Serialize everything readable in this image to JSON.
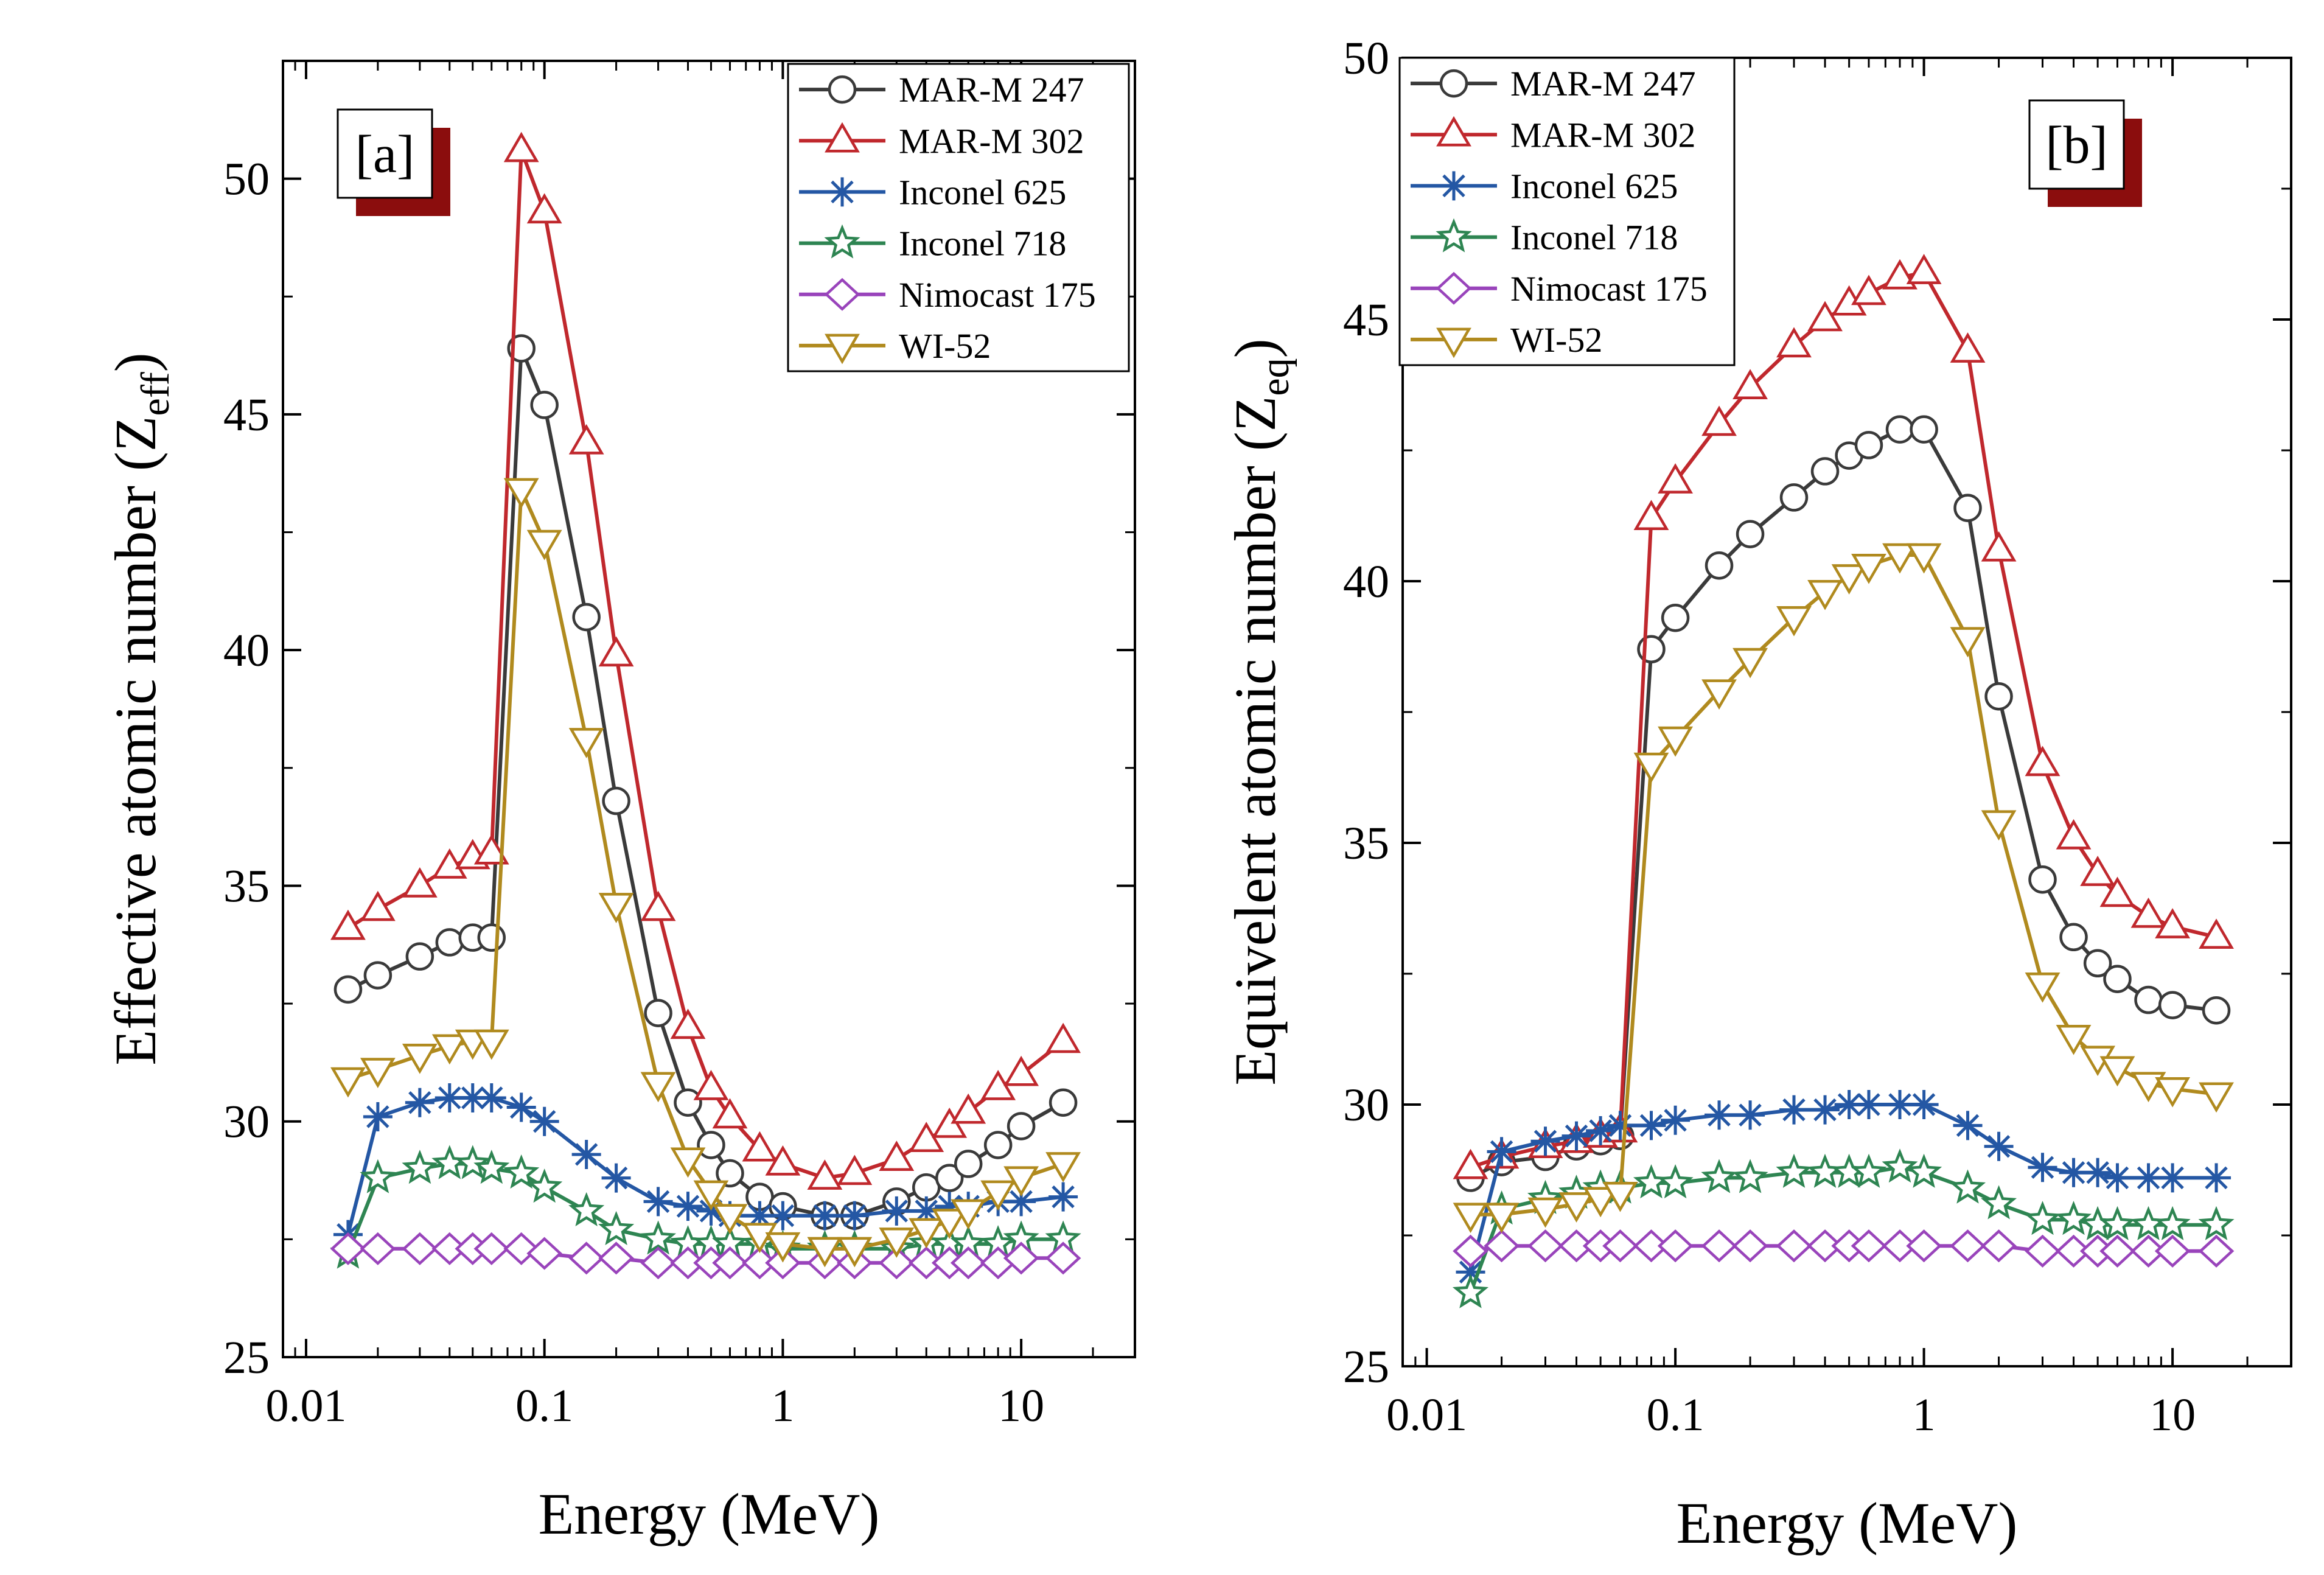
{
  "chart_data": [
    {
      "type": "line",
      "panel_tag": "[a]",
      "xlabel": "Energy (MeV)",
      "ylabel": "Effective atomic number (Z",
      "ylabel_sub": "eff",
      "ylabel_close": ")",
      "xscale": "log",
      "xlim": [
        0.008,
        30
      ],
      "ylim": [
        25,
        52.5
      ],
      "xticks": [
        0.01,
        0.1,
        1,
        10
      ],
      "xtick_labels": [
        "0.01",
        "0.1",
        "1",
        "10"
      ],
      "yticks": [
        25,
        30,
        35,
        40,
        45,
        50
      ],
      "ytick_labels": [
        "25",
        "30",
        "35",
        "40",
        "45",
        "50"
      ],
      "legend_position": "top-right",
      "x": [
        0.015,
        0.02,
        0.03,
        0.04,
        0.05,
        0.06,
        0.08,
        0.1,
        0.15,
        0.2,
        0.3,
        0.4,
        0.5,
        0.6,
        0.8,
        1,
        1.5,
        2,
        3,
        4,
        5,
        6,
        8,
        10,
        15
      ],
      "series": [
        {
          "name": "MAR-M 247",
          "color": "#3a3a3a",
          "marker": "circle",
          "values": [
            32.8,
            33.1,
            33.5,
            33.8,
            33.9,
            33.9,
            46.4,
            45.2,
            40.7,
            36.8,
            32.3,
            30.4,
            29.5,
            28.9,
            28.4,
            28.2,
            28.0,
            28.0,
            28.3,
            28.6,
            28.8,
            29.1,
            29.5,
            29.9,
            30.4
          ]
        },
        {
          "name": "MAR-M 302",
          "color": "#c0282d",
          "marker": "triangle-up",
          "values": [
            34.1,
            34.5,
            35.0,
            35.4,
            35.6,
            35.7,
            50.6,
            49.3,
            44.4,
            39.9,
            34.5,
            32.0,
            30.7,
            30.1,
            29.4,
            29.1,
            28.8,
            28.9,
            29.2,
            29.6,
            29.9,
            30.2,
            30.7,
            31.0,
            31.7
          ]
        },
        {
          "name": "Inconel 625",
          "color": "#2457a4",
          "marker": "asterisk",
          "values": [
            27.6,
            30.1,
            30.4,
            30.5,
            30.5,
            30.5,
            30.3,
            30.0,
            29.3,
            28.8,
            28.3,
            28.2,
            28.1,
            28.0,
            28.0,
            28.0,
            28.0,
            28.0,
            28.1,
            28.1,
            28.2,
            28.2,
            28.3,
            28.3,
            28.4
          ]
        },
        {
          "name": "Inconel 718",
          "color": "#2e8552",
          "marker": "star",
          "values": [
            27.2,
            28.8,
            29.0,
            29.1,
            29.1,
            29.0,
            28.9,
            28.6,
            28.1,
            27.7,
            27.5,
            27.4,
            27.4,
            27.4,
            27.4,
            27.3,
            27.3,
            27.3,
            27.3,
            27.4,
            27.4,
            27.4,
            27.4,
            27.5,
            27.5
          ]
        },
        {
          "name": "Nimocast 175",
          "color": "#9944bb",
          "marker": "diamond",
          "values": [
            27.3,
            27.3,
            27.3,
            27.3,
            27.3,
            27.3,
            27.3,
            27.2,
            27.1,
            27.1,
            27.0,
            27.0,
            27.0,
            27.0,
            27.0,
            27.0,
            27.0,
            27.0,
            27.0,
            27.0,
            27.0,
            27.0,
            27.0,
            27.1,
            27.1
          ]
        },
        {
          "name": "WI-52",
          "color": "#b08a1e",
          "marker": "triangle-down",
          "values": [
            30.9,
            31.1,
            31.4,
            31.6,
            31.7,
            31.7,
            43.4,
            42.3,
            38.1,
            34.6,
            30.8,
            29.2,
            28.5,
            28.0,
            27.6,
            27.4,
            27.3,
            27.3,
            27.5,
            27.7,
            27.9,
            28.1,
            28.5,
            28.8,
            29.1
          ]
        }
      ]
    },
    {
      "type": "line",
      "panel_tag": "[b]",
      "xlabel": "Energy (MeV)",
      "ylabel": "Equivelent atomic number (Z",
      "ylabel_sub": "eq",
      "ylabel_close": ")",
      "xscale": "log",
      "xlim": [
        0.008,
        30
      ],
      "ylim": [
        25,
        50
      ],
      "xticks": [
        0.01,
        0.1,
        1,
        10
      ],
      "xtick_labels": [
        "0.01",
        "0.1",
        "1",
        "10"
      ],
      "yticks": [
        25,
        30,
        35,
        40,
        45,
        50
      ],
      "ytick_labels": [
        "25",
        "30",
        "35",
        "40",
        "45",
        "50"
      ],
      "legend_position": "top-left",
      "x": [
        0.015,
        0.02,
        0.03,
        0.04,
        0.05,
        0.06,
        0.08,
        0.1,
        0.15,
        0.2,
        0.3,
        0.4,
        0.5,
        0.6,
        0.8,
        1,
        1.5,
        2,
        3,
        4,
        5,
        6,
        8,
        10,
        15
      ],
      "series": [
        {
          "name": "MAR-M 247",
          "color": "#3a3a3a",
          "marker": "circle",
          "values": [
            28.6,
            28.9,
            29.0,
            29.2,
            29.3,
            29.4,
            38.7,
            39.3,
            40.3,
            40.9,
            41.6,
            42.1,
            42.4,
            42.6,
            42.9,
            42.9,
            41.4,
            37.8,
            34.3,
            33.2,
            32.7,
            32.4,
            32.0,
            31.9,
            31.8
          ]
        },
        {
          "name": "MAR-M 302",
          "color": "#c0282d",
          "marker": "triangle-up",
          "values": [
            28.8,
            29.0,
            29.2,
            29.3,
            29.4,
            29.5,
            41.2,
            41.9,
            43.0,
            43.7,
            44.5,
            45.0,
            45.3,
            45.5,
            45.8,
            45.9,
            44.4,
            40.6,
            36.5,
            35.1,
            34.4,
            34.0,
            33.6,
            33.4,
            33.2
          ]
        },
        {
          "name": "Inconel 625",
          "color": "#2457a4",
          "marker": "asterisk",
          "values": [
            26.8,
            29.1,
            29.3,
            29.4,
            29.5,
            29.6,
            29.6,
            29.7,
            29.8,
            29.8,
            29.9,
            29.9,
            30.0,
            30.0,
            30.0,
            30.0,
            29.6,
            29.2,
            28.8,
            28.7,
            28.7,
            28.6,
            28.6,
            28.6,
            28.6
          ]
        },
        {
          "name": "Inconel 718",
          "color": "#2e8552",
          "marker": "star",
          "values": [
            26.4,
            28.0,
            28.2,
            28.3,
            28.4,
            28.4,
            28.5,
            28.5,
            28.6,
            28.6,
            28.7,
            28.7,
            28.7,
            28.7,
            28.8,
            28.7,
            28.4,
            28.1,
            27.8,
            27.8,
            27.7,
            27.7,
            27.7,
            27.7,
            27.7
          ]
        },
        {
          "name": "Nimocast 175",
          "color": "#9944bb",
          "marker": "diamond",
          "values": [
            27.2,
            27.3,
            27.3,
            27.3,
            27.3,
            27.3,
            27.3,
            27.3,
            27.3,
            27.3,
            27.3,
            27.3,
            27.3,
            27.3,
            27.3,
            27.3,
            27.3,
            27.3,
            27.2,
            27.2,
            27.2,
            27.2,
            27.2,
            27.2,
            27.2
          ]
        },
        {
          "name": "WI-52",
          "color": "#b08a1e",
          "marker": "triangle-down",
          "values": [
            27.9,
            27.9,
            28.0,
            28.1,
            28.2,
            28.3,
            36.5,
            37.0,
            37.9,
            38.5,
            39.3,
            39.8,
            40.1,
            40.3,
            40.5,
            40.5,
            38.9,
            35.4,
            32.3,
            31.3,
            30.9,
            30.7,
            30.4,
            30.3,
            30.2
          ]
        }
      ]
    }
  ]
}
